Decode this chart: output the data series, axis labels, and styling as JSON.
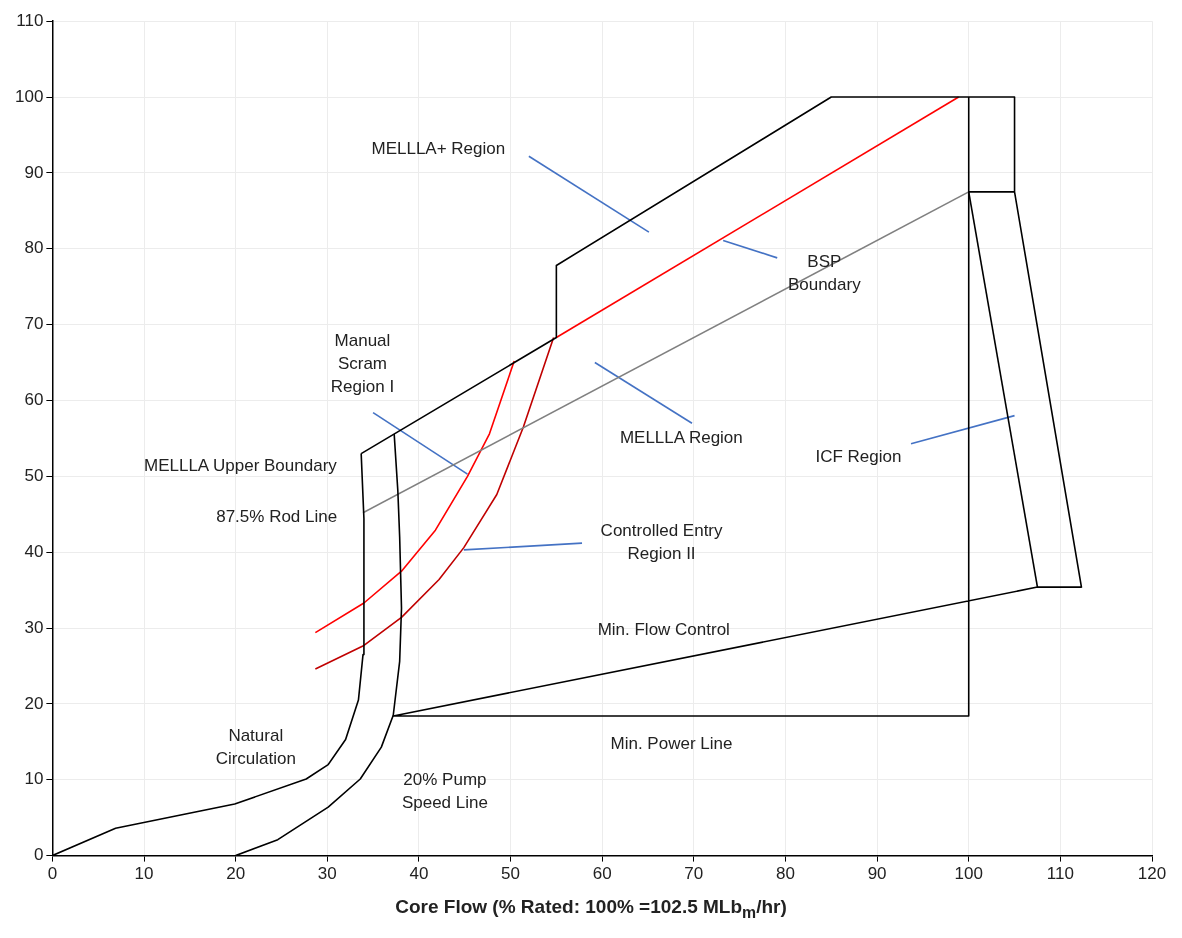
{
  "chart_data": {
    "type": "line",
    "xlabel": "Core Flow (% Rated: 100% =102.5 MLb$_{m}$/hr)",
    "xlim": [
      0,
      120
    ],
    "xticks": [
      0,
      10,
      20,
      30,
      40,
      50,
      60,
      70,
      80,
      90,
      100,
      110,
      120
    ],
    "ylim": [
      0,
      110
    ],
    "yticks": [
      0,
      10,
      20,
      30,
      40,
      50,
      60,
      70,
      80,
      90,
      100,
      110
    ],
    "grid": true,
    "legend": false,
    "marker": "none",
    "line_style": "solid",
    "series": [
      {
        "color": "#000000",
        "x": [
          0,
          6.9,
          19.9,
          27.7,
          30.1,
          32.0,
          33.4,
          33.9,
          34.0,
          33.7
        ],
        "values": [
          0,
          3.6,
          6.8,
          10.1,
          12,
          15.3,
          20.5,
          26.5,
          44.4,
          53.0
        ]
      },
      {
        "color": "#000000",
        "x": [
          20,
          24.6,
          30.1,
          33.6,
          35.9,
          37.2,
          37.9,
          38.1,
          37.9,
          37.7,
          37.3
        ],
        "values": [
          0,
          2.1,
          6.4,
          10.1,
          14.3,
          18.5,
          25.6,
          32.6,
          42,
          48.1,
          55.6
        ]
      },
      {
        "color": "#000000",
        "x": [
          33.7,
          55,
          55,
          85,
          105,
          105,
          112.3,
          107.5,
          37.2,
          100,
          100
        ],
        "values": [
          53,
          68.3,
          77.8,
          100,
          100,
          87.5,
          35.4,
          35.4,
          18.4,
          18.4,
          100
        ]
      },
      {
        "color": "#000000",
        "x": [
          100,
          105
        ],
        "values": [
          87.5,
          87.5
        ]
      },
      {
        "color": "#000000",
        "x": [
          100,
          107.5
        ],
        "values": [
          87.5,
          35.4
        ]
      },
      {
        "color": "#ff0000",
        "x": [
          55,
          98.9
        ],
        "values": [
          68.3,
          100
        ]
      },
      {
        "color": "#808080",
        "x": [
          33.9,
          100
        ],
        "values": [
          45.2,
          87.5
        ]
      },
      {
        "color": "#ff0000",
        "x": [
          28.7,
          34.0,
          38.1,
          41.8,
          45.3,
          47.7,
          50.4
        ],
        "values": [
          29.4,
          33.3,
          37.5,
          42.9,
          50,
          55.6,
          65.2
        ]
      },
      {
        "color": "#c00000",
        "x": [
          28.7,
          34.0,
          38.1,
          42.2,
          44.9,
          48.5,
          51.4,
          54.7
        ],
        "values": [
          24.6,
          27.7,
          31.4,
          36.4,
          40.6,
          47.6,
          56.5,
          68.3
        ]
      },
      {
        "color": "#4472c4",
        "x": [
          52.0,
          65.1
        ],
        "values": [
          92.2,
          82.2
        ]
      },
      {
        "color": "#4472c4",
        "x": [
          73.2,
          79.1
        ],
        "values": [
          81.1,
          78.8
        ]
      },
      {
        "color": "#4472c4",
        "x": [
          35.0,
          45.3
        ],
        "values": [
          58.4,
          50.3
        ]
      },
      {
        "color": "#4472c4",
        "x": [
          59.2,
          69.8
        ],
        "values": [
          65.0,
          57.0
        ]
      },
      {
        "color": "#4472c4",
        "x": [
          93.7,
          105
        ],
        "values": [
          54.3,
          58.0
        ]
      },
      {
        "color": "#4472c4",
        "x": [
          44.9,
          57.8
        ],
        "values": [
          40.3,
          41.2
        ]
      }
    ],
    "annotations": [
      "MELLLA+ Region",
      "BSP\nBoundary",
      "Manual\nScram\nRegion I",
      "MELLLA Region",
      "ICF Region",
      "Controlled Entry\nRegion II",
      "Min. Flow Control",
      "Min. Power Line",
      "Natural\nCirculation",
      "20% Pump\nSpeed Line",
      "MELLLA Upper Boundary",
      "87.5% Rod Line"
    ]
  }
}
